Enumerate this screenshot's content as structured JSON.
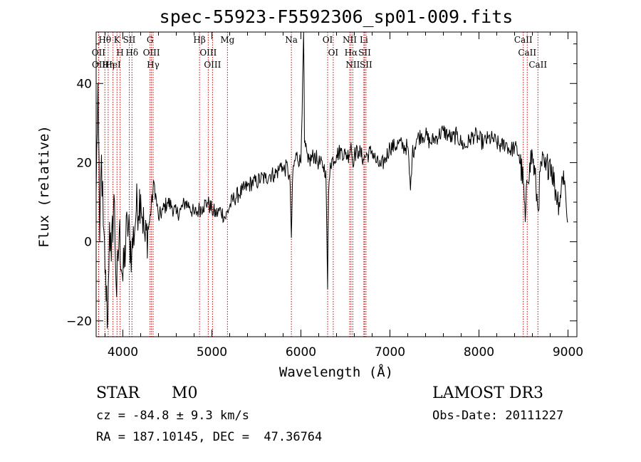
{
  "info": {
    "class_label": "STAR",
    "subclass_label": "M0",
    "survey_label": "LAMOST DR3",
    "cz_text": "cz = -84.8 ± 9.3 km/s",
    "obs_date_text": "Obs-Date: 20111227",
    "radec_text": "RA = 187.10145, DEC =  47.36764"
  },
  "chart_data": {
    "type": "line",
    "title": "spec-55923-F5592306_sp01-009.fits",
    "xlabel": "Wavelength (Å)",
    "ylabel": "Flux (relative)",
    "xlim": [
      3700,
      9100
    ],
    "ylim": [
      -24,
      53
    ],
    "xticks": [
      4000,
      5000,
      6000,
      7000,
      8000,
      9000
    ],
    "yticks": [
      -20,
      0,
      20,
      40
    ],
    "line_color": "#000000",
    "marker_color": "#cc0000",
    "series": [
      {
        "x": [
          3700,
          3720,
          3740,
          3760,
          3780,
          3800,
          3830,
          3850,
          3870,
          3900,
          3930,
          3960,
          4000,
          4050,
          4100,
          4150,
          4200,
          4250,
          4300,
          4350,
          4400,
          4450,
          4500,
          4550,
          4600,
          4650,
          4700,
          4750,
          4800,
          4850,
          4900,
          4950,
          5000,
          5050,
          5100,
          5150,
          5200,
          5250,
          5300,
          5350,
          5400,
          5450,
          5500,
          5550,
          5600,
          5650,
          5700,
          5750,
          5780,
          5800,
          5850,
          5880,
          5893,
          5910,
          5950,
          6000,
          6020,
          6030,
          6040,
          6080,
          6150,
          6200,
          6250,
          6280,
          6300,
          6310,
          6330,
          6400,
          6450,
          6500,
          6540,
          6563,
          6580,
          6600,
          6650,
          6700,
          6750,
          6800,
          6850,
          6900,
          6950,
          7000,
          7050,
          7100,
          7150,
          7200,
          7230,
          7250,
          7300,
          7350,
          7400,
          7450,
          7500,
          7550,
          7600,
          7650,
          7700,
          7750,
          7800,
          7850,
          7900,
          7950,
          8000,
          8050,
          8100,
          8150,
          8200,
          8250,
          8300,
          8350,
          8400,
          8450,
          8498,
          8520,
          8542,
          8570,
          8600,
          8640,
          8662,
          8700,
          8750,
          8800,
          8850,
          8900,
          8950,
          9000
        ],
        "values": [
          12,
          40,
          0,
          22,
          4,
          -8,
          -20,
          5,
          -5,
          12,
          -14,
          3,
          -10,
          5,
          -3,
          8,
          12,
          0,
          5,
          15,
          6,
          8,
          10,
          9,
          7,
          8,
          10,
          9,
          7,
          8,
          9,
          10,
          8,
          7,
          8,
          6,
          9,
          11,
          12,
          13,
          14,
          15,
          15,
          16,
          16,
          17,
          17,
          18,
          20,
          18,
          19,
          14,
          1,
          18,
          22,
          20,
          42,
          55,
          25,
          20,
          22,
          20,
          19,
          18,
          -12,
          12,
          20,
          22,
          23,
          22,
          22,
          25,
          20,
          22,
          23,
          21,
          22,
          23,
          20,
          19,
          21,
          24,
          24,
          25,
          24,
          24,
          13,
          22,
          26,
          27,
          27,
          25,
          26,
          27,
          28,
          27,
          26,
          27,
          25,
          24,
          26,
          27,
          26,
          25,
          26,
          26,
          25,
          24,
          25,
          23,
          24,
          22,
          15,
          5,
          15,
          20,
          22,
          14,
          8,
          20,
          18,
          21,
          14,
          10,
          18,
          5
        ]
      }
    ],
    "lines": [
      {
        "name": "Hθ",
        "wavelength": 3798
      },
      {
        "name": "OII",
        "wavelength": 3727
      },
      {
        "name": "OII",
        "wavelength": 3729
      },
      {
        "name": "Hη",
        "wavelength": 3835
      },
      {
        "name": "HeI",
        "wavelength": 3889
      },
      {
        "name": "K",
        "wavelength": 3934
      },
      {
        "name": "H",
        "wavelength": 3969
      },
      {
        "name": "SII",
        "wavelength": 4072
      },
      {
        "name": "Hδ",
        "wavelength": 4102
      },
      {
        "name": "G",
        "wavelength": 4305
      },
      {
        "name": "OIII",
        "wavelength": 4321
      },
      {
        "name": "Hγ",
        "wavelength": 4340
      },
      {
        "name": "Hβ",
        "wavelength": 4861
      },
      {
        "name": "OIII",
        "wavelength": 4959
      },
      {
        "name": "OIII",
        "wavelength": 5007
      },
      {
        "name": "Mg",
        "wavelength": 5175
      },
      {
        "name": "Na",
        "wavelength": 5893
      },
      {
        "name": "OI",
        "wavelength": 6300
      },
      {
        "name": "OI",
        "wavelength": 6363
      },
      {
        "name": "NII",
        "wavelength": 6548
      },
      {
        "name": "Hα",
        "wavelength": 6563
      },
      {
        "name": "NII",
        "wavelength": 6583
      },
      {
        "name": "Li",
        "wavelength": 6707
      },
      {
        "name": "SII",
        "wavelength": 6716
      },
      {
        "name": "SII",
        "wavelength": 6731
      },
      {
        "name": "CaII",
        "wavelength": 8498
      },
      {
        "name": "CaII",
        "wavelength": 8542
      },
      {
        "name": "CaII",
        "wavelength": 8662
      }
    ]
  }
}
